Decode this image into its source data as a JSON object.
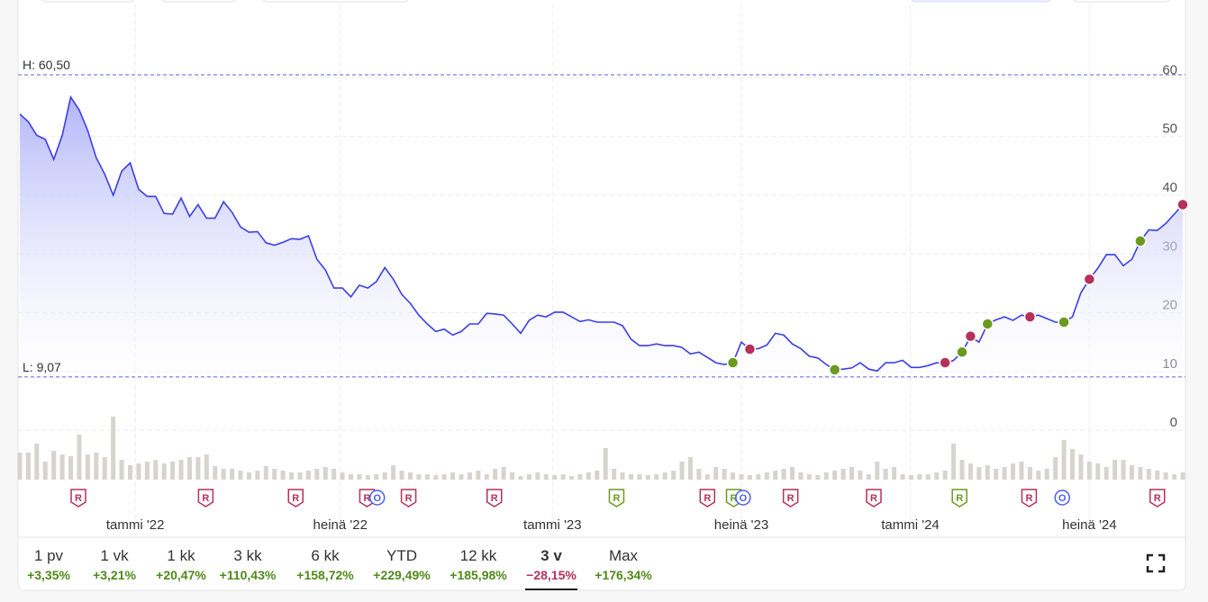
{
  "chart_data": {
    "type": "line",
    "series": [
      {
        "color": "#3b3fe6",
        "values": [
          53.8,
          52.5,
          50.2,
          49.5,
          46.1,
          50.2,
          56.7,
          54.5,
          51.0,
          46.4,
          43.6,
          40.0,
          44.1,
          45.5,
          41.0,
          39.8,
          39.8,
          36.9,
          36.8,
          39.5,
          36.4,
          38.4,
          36.1,
          36.1,
          38.9,
          37.1,
          34.6,
          33.7,
          33.8,
          31.9,
          31.5,
          32.0,
          32.6,
          32.5,
          33.1,
          29.1,
          27.3,
          24.2,
          24.2,
          22.7,
          24.7,
          24.2,
          25.3,
          27.7,
          25.7,
          23.1,
          21.6,
          19.6,
          18.1,
          16.8,
          17.2,
          16.2,
          16.8,
          18.1,
          18.1,
          19.9,
          19.8,
          19.6,
          18.1,
          16.5,
          18.7,
          19.6,
          19.3,
          20.1,
          20.1,
          19.3,
          18.5,
          18.8,
          18.4,
          18.4,
          18.4,
          17.8,
          15.5,
          14.4,
          14.4,
          14.7,
          14.4,
          14.4,
          14.1,
          13.0,
          13.3,
          12.4,
          11.5,
          11.2,
          11.5,
          15.0,
          13.8,
          13.9,
          14.5,
          16.5,
          16.2,
          14.7,
          13.9,
          12.6,
          12.3,
          11.2,
          10.3,
          10.4,
          10.6,
          11.5,
          10.4,
          10.1,
          11.5,
          11.5,
          11.9,
          10.7,
          10.7,
          11.0,
          11.5,
          11.3,
          11.9,
          13.3,
          15.9,
          15.0,
          18.1,
          18.8,
          19.3,
          18.7,
          19.6,
          19.3,
          19.6,
          19.0,
          18.4,
          18.4,
          19.3,
          23.4,
          25.7,
          27.6,
          29.9,
          29.9,
          28.0,
          29.1,
          32.2,
          34.1,
          34.0,
          35.2,
          36.8,
          38.4
        ]
      }
    ],
    "volume": {
      "color": "#d6d4cc",
      "values": [
        30,
        30,
        40,
        20,
        32,
        28,
        26,
        50,
        28,
        30,
        25,
        70,
        22,
        16,
        18,
        20,
        22,
        18,
        20,
        22,
        25,
        25,
        28,
        15,
        12,
        12,
        10,
        8,
        10,
        15,
        12,
        10,
        8,
        8,
        10,
        12,
        14,
        12,
        8,
        6,
        6,
        5,
        6,
        8,
        16,
        10,
        8,
        6,
        6,
        5,
        6,
        8,
        6,
        8,
        10,
        6,
        12,
        14,
        8,
        4,
        6,
        8,
        6,
        5,
        6,
        4,
        6,
        8,
        10,
        35,
        12,
        8,
        6,
        6,
        5,
        6,
        8,
        10,
        20,
        25,
        12,
        6,
        14,
        12,
        8,
        6,
        5,
        6,
        8,
        10,
        12,
        14,
        8,
        6,
        5,
        8,
        10,
        12,
        14,
        10,
        6,
        20,
        12,
        14,
        6,
        5,
        6,
        6,
        8,
        10,
        40,
        22,
        18,
        14,
        16,
        12,
        14,
        18,
        20,
        14,
        10,
        12,
        25,
        44,
        34,
        28,
        20,
        18,
        14,
        22,
        22,
        16,
        14,
        12,
        10,
        8,
        6,
        8
      ]
    },
    "signals": [
      {
        "x": 84,
        "value": 11.5,
        "color": "#6a9a1e"
      },
      {
        "x": 86,
        "value": 13.8,
        "color": "#b5305a"
      },
      {
        "x": 96,
        "value": 10.3,
        "color": "#6a9a1e"
      },
      {
        "x": 109,
        "value": 11.5,
        "color": "#b5305a"
      },
      {
        "x": 111,
        "value": 13.3,
        "color": "#6a9a1e"
      },
      {
        "x": 112,
        "value": 16.0,
        "color": "#b5305a"
      },
      {
        "x": 114,
        "value": 18.1,
        "color": "#6a9a1e"
      },
      {
        "x": 119,
        "value": 19.3,
        "color": "#b5305a"
      },
      {
        "x": 123,
        "value": 18.4,
        "color": "#6a9a1e"
      },
      {
        "x": 126,
        "value": 25.7,
        "color": "#b5305a"
      },
      {
        "x": 132,
        "value": 32.2,
        "color": "#6a9a1e"
      },
      {
        "x": 137,
        "value": 38.4,
        "color": "#b5305a"
      }
    ],
    "events": [
      {
        "x": 6.9,
        "label": "R",
        "color": "#b5305a"
      },
      {
        "x": 21.9,
        "label": "R",
        "color": "#b5305a"
      },
      {
        "x": 32.5,
        "label": "R",
        "color": "#b5305a"
      },
      {
        "x": 40.9,
        "label": "R",
        "color": "#b5305a"
      },
      {
        "x": 42.1,
        "label": "O",
        "color": "#4a5ee6"
      },
      {
        "x": 45.8,
        "label": "R",
        "color": "#b5305a"
      },
      {
        "x": 55.9,
        "label": "R",
        "color": "#b5305a"
      },
      {
        "x": 70.3,
        "label": "R",
        "color": "#6a9a1e"
      },
      {
        "x": 81,
        "label": "R",
        "color": "#b5305a"
      },
      {
        "x": 84.1,
        "label": "R",
        "color": "#6a9a1e"
      },
      {
        "x": 85.2,
        "label": "O",
        "color": "#4a5ee6"
      },
      {
        "x": 90.8,
        "label": "R",
        "color": "#b5305a"
      },
      {
        "x": 100.6,
        "label": "R",
        "color": "#b5305a"
      },
      {
        "x": 110.7,
        "label": "R",
        "color": "#6a9a1e"
      },
      {
        "x": 118.9,
        "label": "R",
        "color": "#b5305a"
      },
      {
        "x": 122.8,
        "label": "O",
        "color": "#4a5ee6"
      },
      {
        "x": 134,
        "label": "R",
        "color": "#b5305a"
      }
    ],
    "high": {
      "value": 60.5,
      "label": "H: 60,50"
    },
    "low": {
      "value": 9.07,
      "label": "L: 9,07"
    },
    "xlim": [
      0,
      137
    ],
    "xticks": [
      {
        "value": 13.6,
        "label": "tammi '22"
      },
      {
        "value": 37.75,
        "label": "heinä '22"
      },
      {
        "value": 62.75,
        "label": "tammi '23"
      },
      {
        "value": 85,
        "label": "heinä '23"
      },
      {
        "value": 104.9,
        "label": "tammi '24"
      },
      {
        "value": 126,
        "label": "heinä '24"
      }
    ],
    "ylim": [
      -8.4,
      72
    ],
    "yticks": [
      0,
      10,
      20,
      30,
      40,
      50,
      60
    ],
    "grid": true
  },
  "periods": [
    {
      "label": "1 pv",
      "change": "+3,35%",
      "color": "#4f8a1a"
    },
    {
      "label": "1 vk",
      "change": "+3,21%",
      "color": "#4f8a1a"
    },
    {
      "label": "1 kk",
      "change": "+20,47%",
      "color": "#4f8a1a"
    },
    {
      "label": "3 kk",
      "change": "+110,43%",
      "color": "#4f8a1a"
    },
    {
      "label": "6 kk",
      "change": "+158,72%",
      "color": "#4f8a1a"
    },
    {
      "label": "YTD",
      "change": "+229,49%",
      "color": "#4f8a1a"
    },
    {
      "label": "12 kk",
      "change": "+185,98%",
      "color": "#4f8a1a"
    },
    {
      "label": "3 v",
      "change": "−28,15%",
      "color": "#b5305a",
      "selected": true
    },
    {
      "label": "Max",
      "change": "+176,34%",
      "color": "#4f8a1a"
    }
  ]
}
